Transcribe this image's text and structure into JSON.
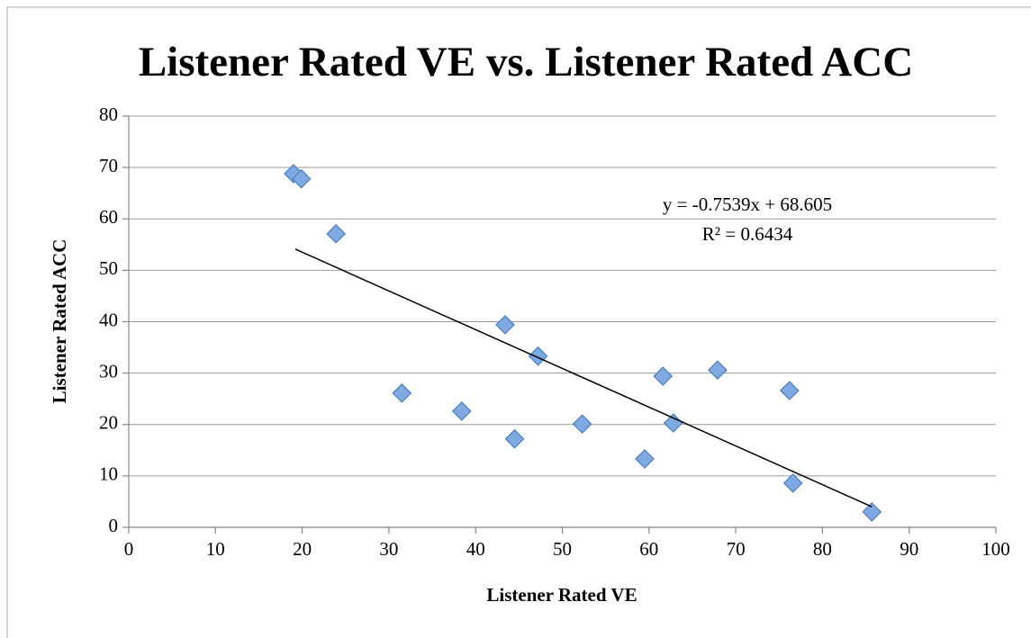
{
  "chart_data": {
    "type": "scatter",
    "title": "Listener Rated VE vs. Listener Rated ACC",
    "x_label": "Listener Rated VE",
    "y_label": "Listener Rated ACC",
    "series": [
      {
        "color": "#7ea9e1",
        "x": [
          19.0,
          19.9,
          23.9,
          31.5,
          38.4,
          43.4,
          44.5,
          47.2,
          52.3,
          59.5,
          61.6,
          62.8,
          67.9,
          76.2,
          76.6,
          85.7
        ],
        "values": [
          68.8,
          67.8,
          57.1,
          26.1,
          22.6,
          39.4,
          17.2,
          33.3,
          20.1,
          13.3,
          29.4,
          20.3,
          30.6,
          26.6,
          8.6,
          3.0
        ]
      }
    ],
    "trendline": {
      "slope": -0.7539,
      "intercept": 68.605,
      "x_range": [
        19.2,
        85.7
      ],
      "color": "#000000"
    },
    "annotations": [
      "y = -0.7539x + 68.605",
      "R² = 0.6434"
    ],
    "xlim": [
      0,
      100
    ],
    "xticks": [
      0,
      10,
      20,
      30,
      40,
      50,
      60,
      70,
      80,
      90,
      100
    ],
    "ylim": [
      0,
      80
    ],
    "yticks": [
      0,
      10,
      20,
      30,
      40,
      50,
      60,
      70,
      80
    ],
    "grid": true
  }
}
